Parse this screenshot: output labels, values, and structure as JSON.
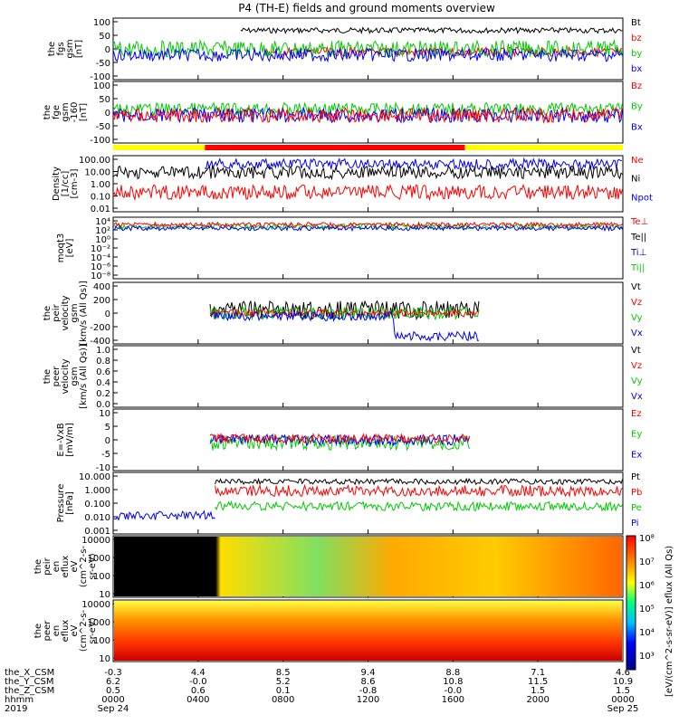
{
  "title": "P4 (TH-E) fields and ground moments overview",
  "colors": {
    "black": "#000000",
    "red": "#ff0000",
    "green": "#00cc00",
    "blue": "#0000ff",
    "yellow": "#ffff00",
    "frame": "#000000"
  },
  "chart_data": {
    "type": "line",
    "x_tick_labels": [
      "0000",
      "0400",
      "0800",
      "1200",
      "1600",
      "2000",
      "0000"
    ],
    "panels": [
      {
        "id": "fgs",
        "ylabel": [
          "the",
          "fgs",
          "gsm",
          "[nT]"
        ],
        "yticks": [
          "100",
          "50",
          "0",
          "-50",
          "-100"
        ],
        "legend": [
          {
            "t": "Bt",
            "c": "black"
          },
          {
            "t": "bz",
            "c": "red"
          },
          {
            "t": "by",
            "c": "green"
          },
          {
            "t": "bx",
            "c": "blue"
          }
        ],
        "ylim": [
          -100,
          100
        ]
      },
      {
        "id": "fge",
        "ylabel": [
          "the",
          "fge",
          "gsm",
          "-160",
          "[nT]"
        ],
        "yticks": [
          "100",
          "50",
          "0",
          "-50",
          "-100"
        ],
        "legend": [
          {
            "t": "Bz",
            "c": "red"
          },
          {
            "t": "By",
            "c": "green"
          },
          {
            "t": "Bx",
            "c": "blue"
          }
        ],
        "ylim": [
          -120,
          100
        ]
      },
      {
        "id": "density",
        "ylabel": [
          "Density",
          "[1/cc]",
          "[cm-3]"
        ],
        "yticks": [
          "100.00",
          "10.00",
          "1.00",
          "0.10",
          "0.01"
        ],
        "legend": [
          {
            "t": "Ne",
            "c": "red"
          },
          {
            "t": "Ni",
            "c": "black"
          },
          {
            "t": "Npot",
            "c": "blue"
          }
        ],
        "ylim": [
          0.01,
          100
        ]
      },
      {
        "id": "temp",
        "ylabel": [
          "moqt3",
          "[eV]"
        ],
        "yticks": [
          "10⁴",
          "10²",
          "10⁰",
          "10⁻²",
          "10⁻⁴",
          "10⁻⁶",
          "10⁻⁸"
        ],
        "legend": [
          {
            "t": "Te⊥",
            "c": "red"
          },
          {
            "t": "Te||",
            "c": "black"
          },
          {
            "t": "Ti⊥",
            "c": "blue"
          },
          {
            "t": "Ti||",
            "c": "green"
          }
        ]
      },
      {
        "id": "ivel",
        "ylabel": [
          "the",
          "peir",
          "velocity",
          "gsm",
          "[km/s (All Qs)]"
        ],
        "yticks": [
          "400",
          "200",
          "0",
          "-200",
          "-400"
        ],
        "legend": [
          {
            "t": "Vt",
            "c": "black"
          },
          {
            "t": "Vz",
            "c": "red"
          },
          {
            "t": "Vy",
            "c": "green"
          },
          {
            "t": "Vx",
            "c": "blue"
          }
        ],
        "ylim": [
          -400,
          400
        ]
      },
      {
        "id": "evel",
        "ylabel": [
          "the",
          "peer",
          "velocity",
          "gsm",
          "[km/s (All Qs)]"
        ],
        "yticks": [
          "1.0",
          "0.8",
          "0.6",
          "0.4",
          "0.2",
          "0.0"
        ],
        "legend": [
          {
            "t": "Vt",
            "c": "black"
          },
          {
            "t": "Vz",
            "c": "red"
          },
          {
            "t": "Vy",
            "c": "green"
          },
          {
            "t": "Vx",
            "c": "blue"
          }
        ],
        "ylim": [
          0,
          1
        ]
      },
      {
        "id": "efield",
        "ylabel": [
          "E=-VxB",
          "[mV/m]"
        ],
        "yticks": [
          "10",
          "5",
          "0",
          "-5",
          "-10"
        ],
        "legend": [
          {
            "t": "Ez",
            "c": "red"
          },
          {
            "t": "Ey",
            "c": "green"
          },
          {
            "t": "Ex",
            "c": "blue"
          }
        ],
        "ylim": [
          -10,
          10
        ]
      },
      {
        "id": "pressure",
        "ylabel": [
          "Pressure",
          "[nPa]"
        ],
        "yticks": [
          "10.000",
          "1.000",
          "0.100",
          "0.010",
          "0.001"
        ],
        "legend": [
          {
            "t": "Pt",
            "c": "black"
          },
          {
            "t": "Pb",
            "c": "red"
          },
          {
            "t": "Pe",
            "c": "green"
          },
          {
            "t": "Pi",
            "c": "blue"
          }
        ],
        "ylim": [
          0.001,
          10
        ]
      },
      {
        "id": "ispec",
        "ylabel": [
          "the",
          "peir",
          "en",
          "eflux",
          "eV",
          "(cm^2-s-",
          "sr-eV)"
        ],
        "yticks": [
          "10000",
          "1000",
          "100",
          "10"
        ]
      },
      {
        "id": "espec",
        "ylabel": [
          "the",
          "peer",
          "en",
          "eflux",
          "eV",
          "(cm^2-s-",
          "sr-eV)"
        ],
        "yticks": [
          "10000",
          "1000",
          "100",
          "10"
        ]
      }
    ],
    "colorbar": {
      "ticks": [
        "10⁸",
        "10⁷",
        "10⁶",
        "10⁵",
        "10⁴",
        "10³"
      ],
      "label": "[eV/(cm^2-s-sr-eV)]  eflux (All Qs)"
    },
    "ephemeris": {
      "labels": [
        "the_X_CSM",
        "the_Y_CSM",
        "the_Z_CSM",
        "hhmm",
        "2019"
      ],
      "columns": [
        [
          "-0.3",
          "6.2",
          "0.5",
          "0000",
          "Sep 24"
        ],
        [
          "4.4",
          "-0.0",
          "0.6",
          "0400",
          ""
        ],
        [
          "8.5",
          "5.2",
          "0.1",
          "0800",
          ""
        ],
        [
          "9.4",
          "8.6",
          "-0.8",
          "1200",
          ""
        ],
        [
          "8.8",
          "10.8",
          "-0.0",
          "1600",
          ""
        ],
        [
          "7.1",
          "11.5",
          "1.5",
          "2000",
          ""
        ],
        [
          "4.6",
          "10.9",
          "1.5",
          "0000",
          "Sep 25"
        ]
      ]
    }
  }
}
